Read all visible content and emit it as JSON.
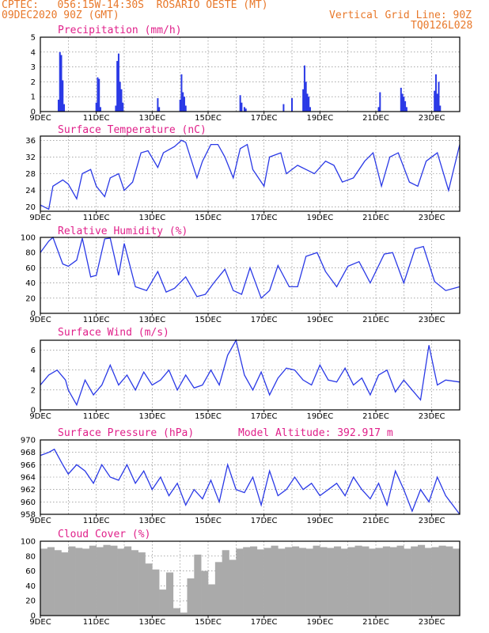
{
  "header": {
    "line1": "CPTEC:   056:15W-14:30S  ROSARIO OESTE (MT)",
    "line2": "09DEC2020 90Z (GMT)",
    "grid_note": "Vertical Grid Line: 90Z",
    "run_id": "TQ0126L028"
  },
  "colors": {
    "header": "#e8782a",
    "title": "#e0208a",
    "series": "#2a39e6",
    "cloud": "#aaaaaa"
  },
  "chart_data": [
    {
      "type": "bar",
      "title": "Precipitation (mm/h)",
      "ylim": [
        0,
        5
      ],
      "yticks": [
        0,
        1,
        2,
        3,
        4,
        5
      ],
      "xticks": [
        "9DEC",
        "11DEC",
        "13DEC",
        "15DEC",
        "17DEC",
        "19DEC",
        "21DEC",
        "23DEC"
      ],
      "x_day_range": [
        0,
        15
      ],
      "x": [
        0.65,
        0.7,
        0.75,
        0.8,
        0.85,
        2.0,
        2.05,
        2.1,
        2.15,
        2.7,
        2.75,
        2.8,
        2.85,
        2.9,
        2.95,
        4.2,
        4.25,
        5.0,
        5.05,
        5.1,
        5.15,
        5.2,
        7.15,
        7.2,
        7.3,
        7.35,
        8.7,
        9.0,
        9.4,
        9.45,
        9.5,
        9.55,
        9.6,
        9.65,
        12.1,
        12.15,
        12.9,
        12.95,
        13.0,
        13.05,
        13.1,
        14.1,
        14.15,
        14.2,
        14.25,
        14.3
      ],
      "values": [
        0.8,
        4.0,
        3.8,
        2.1,
        0.5,
        0.6,
        2.3,
        2.2,
        0.3,
        0.4,
        3.4,
        3.9,
        2.0,
        1.5,
        0.6,
        0.9,
        0.3,
        0.8,
        2.5,
        1.3,
        1.0,
        0.4,
        1.1,
        0.6,
        0.3,
        0.2,
        0.5,
        0.9,
        1.5,
        3.1,
        2.0,
        1.2,
        1.0,
        0.3,
        0.3,
        1.3,
        1.6,
        1.2,
        1.0,
        0.7,
        0.3,
        1.4,
        2.5,
        1.2,
        2.0,
        0.4
      ]
    },
    {
      "type": "line",
      "title": "Surface Temperature (nC)",
      "ylim": [
        19,
        37
      ],
      "yticks": [
        20,
        24,
        28,
        32,
        36
      ],
      "xticks": [
        "9DEC",
        "11DEC",
        "13DEC",
        "15DEC",
        "17DEC",
        "19DEC",
        "21DEC",
        "23DEC"
      ],
      "x": [
        0,
        0.3,
        0.45,
        0.8,
        1.0,
        1.3,
        1.5,
        1.8,
        2.0,
        2.3,
        2.5,
        2.8,
        3.0,
        3.3,
        3.6,
        3.85,
        4.2,
        4.4,
        4.8,
        5.05,
        5.2,
        5.6,
        5.8,
        6.1,
        6.35,
        6.6,
        6.9,
        7.15,
        7.4,
        7.6,
        8.0,
        8.2,
        8.6,
        8.8,
        9.2,
        9.5,
        9.8,
        10.2,
        10.5,
        10.8,
        11.2,
        11.6,
        11.9,
        12.2,
        12.5,
        12.8,
        13.2,
        13.5,
        13.8,
        14.2,
        14.6,
        15.0
      ],
      "values": [
        20.5,
        19.5,
        25,
        26.5,
        25.5,
        22,
        28,
        29,
        25,
        22.5,
        27,
        28,
        24,
        26,
        33,
        33.5,
        29.5,
        33,
        34.5,
        36,
        35.5,
        27,
        31,
        35,
        35,
        32,
        27,
        34,
        35,
        29,
        25,
        32,
        33,
        28,
        30,
        29,
        28,
        31,
        30,
        26,
        27,
        31,
        33,
        25,
        32,
        33,
        26,
        25,
        31,
        33,
        24,
        35
      ]
    },
    {
      "type": "line",
      "title": "Relative Humidity (%)",
      "ylim": [
        0,
        100
      ],
      "yticks": [
        0,
        20,
        40,
        60,
        80,
        100
      ],
      "xticks": [
        "9DEC",
        "11DEC",
        "13DEC",
        "15DEC",
        "17DEC",
        "19DEC",
        "21DEC",
        "23DEC"
      ],
      "x": [
        0,
        0.3,
        0.45,
        0.8,
        1.0,
        1.3,
        1.5,
        1.8,
        2.0,
        2.3,
        2.5,
        2.8,
        3.0,
        3.4,
        3.8,
        4.2,
        4.5,
        4.8,
        5.2,
        5.6,
        5.9,
        6.2,
        6.6,
        6.9,
        7.2,
        7.5,
        7.9,
        8.2,
        8.5,
        8.9,
        9.2,
        9.5,
        9.9,
        10.2,
        10.6,
        11.0,
        11.4,
        11.8,
        12.3,
        12.6,
        13.0,
        13.4,
        13.7,
        14.1,
        14.5,
        15.0
      ],
      "values": [
        80,
        95,
        100,
        65,
        62,
        70,
        99,
        48,
        50,
        98,
        99,
        50,
        92,
        35,
        30,
        55,
        28,
        33,
        48,
        22,
        25,
        40,
        58,
        30,
        25,
        60,
        20,
        30,
        63,
        35,
        35,
        75,
        80,
        55,
        35,
        62,
        68,
        40,
        78,
        80,
        40,
        85,
        88,
        42,
        30,
        35
      ]
    },
    {
      "type": "line",
      "title": "Surface Wind (m/s)",
      "ylim": [
        0,
        7
      ],
      "yticks": [
        0,
        2,
        4,
        6
      ],
      "xticks": [
        "9DEC",
        "11DEC",
        "13DEC",
        "15DEC",
        "17DEC",
        "19DEC",
        "21DEC",
        "23DEC"
      ],
      "x": [
        0,
        0.3,
        0.6,
        0.9,
        1.0,
        1.3,
        1.6,
        1.9,
        2.2,
        2.5,
        2.8,
        3.1,
        3.4,
        3.7,
        4.0,
        4.3,
        4.6,
        4.9,
        5.2,
        5.5,
        5.8,
        6.1,
        6.4,
        6.7,
        7.0,
        7.3,
        7.6,
        7.9,
        8.2,
        8.5,
        8.8,
        9.1,
        9.4,
        9.7,
        10.0,
        10.3,
        10.6,
        10.9,
        11.2,
        11.5,
        11.8,
        12.1,
        12.4,
        12.7,
        13.0,
        13.3,
        13.6,
        13.9,
        14.2,
        14.5,
        15.0
      ],
      "values": [
        2.5,
        3.5,
        4.0,
        3.0,
        2.0,
        0.5,
        3.0,
        1.5,
        2.5,
        4.5,
        2.5,
        3.5,
        2.0,
        3.8,
        2.5,
        3.0,
        4.0,
        2.0,
        3.5,
        2.2,
        2.5,
        4.0,
        2.5,
        5.5,
        7.0,
        3.5,
        2.0,
        3.8,
        1.5,
        3.2,
        4.2,
        4.0,
        3.0,
        2.5,
        4.5,
        3.0,
        2.8,
        4.2,
        2.5,
        3.2,
        1.5,
        3.5,
        4.0,
        1.8,
        3.0,
        2.0,
        1.0,
        6.5,
        2.5,
        3.0,
        2.8
      ]
    },
    {
      "type": "line",
      "title": "Surface Pressure (hPa)",
      "annotation": "Model Altitude: 392.917 m",
      "ylim": [
        958,
        970
      ],
      "yticks": [
        958,
        960,
        962,
        964,
        966,
        968,
        970
      ],
      "xticks": [
        "9DEC",
        "11DEC",
        "13DEC",
        "15DEC",
        "17DEC",
        "19DEC",
        "21DEC",
        "23DEC"
      ],
      "x": [
        0,
        0.3,
        0.5,
        0.8,
        1.0,
        1.3,
        1.6,
        1.9,
        2.2,
        2.5,
        2.8,
        3.1,
        3.4,
        3.7,
        4.0,
        4.3,
        4.6,
        4.9,
        5.2,
        5.5,
        5.8,
        6.1,
        6.4,
        6.7,
        7.0,
        7.3,
        7.6,
        7.9,
        8.2,
        8.5,
        8.8,
        9.1,
        9.4,
        9.7,
        10.0,
        10.3,
        10.6,
        10.9,
        11.2,
        11.5,
        11.8,
        12.1,
        12.4,
        12.7,
        13.0,
        13.3,
        13.6,
        13.9,
        14.2,
        14.5,
        15.0
      ],
      "values": [
        967.5,
        968,
        968.5,
        966,
        964.5,
        966,
        965,
        963,
        966,
        964,
        963.5,
        966,
        963,
        965,
        962,
        964,
        961,
        963,
        959.5,
        962,
        960.5,
        963.5,
        960,
        966,
        962,
        961.5,
        964,
        959.5,
        965,
        961,
        962,
        964,
        962,
        963,
        961,
        962,
        963,
        961,
        964,
        962,
        960.5,
        963,
        959.5,
        965,
        962,
        958.5,
        962,
        960,
        964,
        961,
        958
      ]
    },
    {
      "type": "bar",
      "title": "Cloud Cover (%)",
      "ylim": [
        0,
        100
      ],
      "yticks": [
        0,
        20,
        40,
        60,
        80,
        100
      ],
      "xticks": [
        "9DEC",
        "11DEC",
        "13DEC",
        "15DEC",
        "17DEC",
        "19DEC",
        "21DEC",
        "23DEC"
      ],
      "x": [
        0.0,
        0.25,
        0.5,
        0.75,
        1.0,
        1.25,
        1.5,
        1.75,
        2.0,
        2.25,
        2.5,
        2.75,
        3.0,
        3.25,
        3.5,
        3.75,
        4.0,
        4.25,
        4.5,
        4.75,
        5.0,
        5.25,
        5.5,
        5.75,
        6.0,
        6.25,
        6.5,
        6.75,
        7.0,
        7.25,
        7.5,
        7.75,
        8.0,
        8.25,
        8.5,
        8.75,
        9.0,
        9.25,
        9.5,
        9.75,
        10.0,
        10.25,
        10.5,
        10.75,
        11.0,
        11.25,
        11.5,
        11.75,
        12.0,
        12.25,
        12.5,
        12.75,
        13.0,
        13.25,
        13.5,
        13.75,
        14.0,
        14.25,
        14.5,
        14.75
      ],
      "values": [
        90,
        92,
        88,
        85,
        93,
        91,
        90,
        94,
        92,
        95,
        94,
        90,
        93,
        88,
        85,
        70,
        62,
        35,
        58,
        10,
        4,
        50,
        82,
        60,
        42,
        72,
        88,
        75,
        90,
        92,
        93,
        89,
        91,
        94,
        90,
        92,
        93,
        91,
        90,
        94,
        92,
        91,
        93,
        90,
        92,
        94,
        93,
        90,
        91,
        93,
        92,
        94,
        90,
        93,
        95,
        91,
        92,
        94,
        93,
        90
      ]
    }
  ]
}
